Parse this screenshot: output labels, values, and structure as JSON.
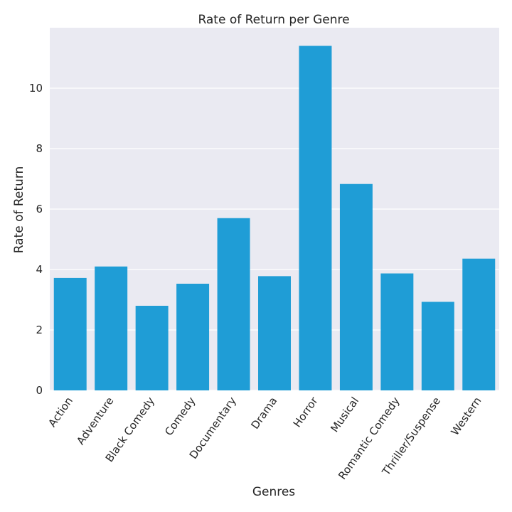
{
  "chart_data": {
    "type": "bar",
    "title": "Rate of Return per Genre",
    "xlabel": "Genres",
    "ylabel": "Rate of Return",
    "categories": [
      "Action",
      "Adventure",
      "Black Comedy",
      "Comedy",
      "Documentary",
      "Drama",
      "Horror",
      "Musical",
      "Romantic Comedy",
      "Thriller/Suspense",
      "Western"
    ],
    "values": [
      3.72,
      4.1,
      2.8,
      3.53,
      5.7,
      3.78,
      11.4,
      6.83,
      3.87,
      2.93,
      4.36
    ],
    "ylim": [
      0,
      12
    ],
    "yticks": [
      0,
      2,
      4,
      6,
      8,
      10
    ],
    "grid": true,
    "bar_color": "#1f9dd6",
    "plot_background": "#eaeaf2",
    "grid_color": "#ffffff"
  }
}
